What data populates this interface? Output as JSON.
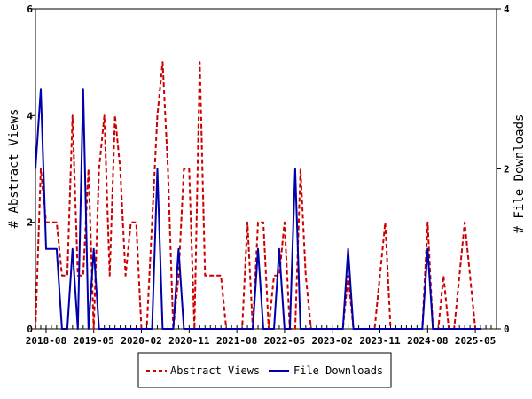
{
  "chart_data": {
    "type": "line",
    "ylabel_left": "# Abstract Views",
    "ylabel_right": "# File Downloads",
    "xlabel": "",
    "title": "",
    "ylim_left": [
      0,
      6
    ],
    "ylim_right": [
      0,
      4
    ],
    "yticks_left": [
      0,
      2,
      4,
      6
    ],
    "yticks_right": [
      0,
      2,
      4
    ],
    "x_start": "2018-06",
    "x_end": "2025-09",
    "x_tick_labels": [
      "2018-08",
      "2019-05",
      "2020-02",
      "2020-11",
      "2021-08",
      "2022-05",
      "2023-02",
      "2023-11",
      "2024-08",
      "2025-05"
    ],
    "legend_placement": "bottom",
    "grid": false,
    "series": [
      {
        "name": "Abstract Views",
        "axis": "left",
        "color": "#cc0000",
        "style": "dashed",
        "points": [
          [
            "2018-06",
            0
          ],
          [
            "2018-07",
            3
          ],
          [
            "2018-08",
            2
          ],
          [
            "2018-09",
            2
          ],
          [
            "2018-10",
            2
          ],
          [
            "2018-11",
            1
          ],
          [
            "2018-12",
            1
          ],
          [
            "2019-01",
            4
          ],
          [
            "2019-02",
            1
          ],
          [
            "2019-03",
            1
          ],
          [
            "2019-04",
            3
          ],
          [
            "2019-05",
            0
          ],
          [
            "2019-06",
            3
          ],
          [
            "2019-07",
            4
          ],
          [
            "2019-08",
            1
          ],
          [
            "2019-09",
            4
          ],
          [
            "2019-10",
            3
          ],
          [
            "2019-11",
            1
          ],
          [
            "2019-12",
            2
          ],
          [
            "2020-01",
            2
          ],
          [
            "2020-02",
            0
          ],
          [
            "2020-03",
            0
          ],
          [
            "2020-04",
            2
          ],
          [
            "2020-05",
            4
          ],
          [
            "2020-06",
            5
          ],
          [
            "2020-07",
            3
          ],
          [
            "2020-08",
            0
          ],
          [
            "2020-09",
            1
          ],
          [
            "2020-10",
            3
          ],
          [
            "2020-11",
            3
          ],
          [
            "2020-12",
            0
          ],
          [
            "2021-01",
            5
          ],
          [
            "2021-02",
            1
          ],
          [
            "2021-03",
            1
          ],
          [
            "2021-04",
            1
          ],
          [
            "2021-05",
            1
          ],
          [
            "2021-06",
            0
          ],
          [
            "2021-07",
            0
          ],
          [
            "2021-08",
            0
          ],
          [
            "2021-09",
            0
          ],
          [
            "2021-10",
            2
          ],
          [
            "2021-11",
            0
          ],
          [
            "2021-12",
            2
          ],
          [
            "2022-01",
            2
          ],
          [
            "2022-02",
            0
          ],
          [
            "2022-03",
            1
          ],
          [
            "2022-04",
            1
          ],
          [
            "2022-05",
            2
          ],
          [
            "2022-06",
            0
          ],
          [
            "2022-07",
            0
          ],
          [
            "2022-08",
            3
          ],
          [
            "2022-09",
            1
          ],
          [
            "2022-10",
            0
          ],
          [
            "2022-11",
            0
          ],
          [
            "2022-12",
            0
          ],
          [
            "2023-01",
            0
          ],
          [
            "2023-02",
            0
          ],
          [
            "2023-03",
            0
          ],
          [
            "2023-04",
            0
          ],
          [
            "2023-05",
            1
          ],
          [
            "2023-06",
            0
          ],
          [
            "2023-07",
            0
          ],
          [
            "2023-08",
            0
          ],
          [
            "2023-09",
            0
          ],
          [
            "2023-10",
            0
          ],
          [
            "2023-11",
            1
          ],
          [
            "2023-12",
            2
          ],
          [
            "2024-01",
            0
          ],
          [
            "2024-02",
            0
          ],
          [
            "2024-03",
            0
          ],
          [
            "2024-04",
            0
          ],
          [
            "2024-05",
            0
          ],
          [
            "2024-06",
            0
          ],
          [
            "2024-07",
            0
          ],
          [
            "2024-08",
            2
          ],
          [
            "2024-09",
            0
          ],
          [
            "2024-10",
            0
          ],
          [
            "2024-11",
            1
          ],
          [
            "2024-12",
            0
          ],
          [
            "2025-01",
            0
          ],
          [
            "2025-02",
            1
          ],
          [
            "2025-03",
            2
          ],
          [
            "2025-04",
            1
          ],
          [
            "2025-05",
            0
          ],
          [
            "2025-06",
            0
          ]
        ]
      },
      {
        "name": "File Downloads",
        "axis": "right",
        "color": "#0000aa",
        "style": "solid",
        "points": [
          [
            "2018-06",
            2
          ],
          [
            "2018-07",
            3
          ],
          [
            "2018-08",
            1
          ],
          [
            "2018-09",
            1
          ],
          [
            "2018-10",
            1
          ],
          [
            "2018-11",
            0
          ],
          [
            "2018-12",
            0
          ],
          [
            "2019-01",
            1
          ],
          [
            "2019-02",
            0
          ],
          [
            "2019-03",
            3
          ],
          [
            "2019-04",
            0
          ],
          [
            "2019-05",
            1
          ],
          [
            "2019-06",
            0
          ],
          [
            "2019-07",
            0
          ],
          [
            "2019-08",
            0
          ],
          [
            "2019-09",
            0
          ],
          [
            "2019-10",
            0
          ],
          [
            "2019-11",
            0
          ],
          [
            "2019-12",
            0
          ],
          [
            "2020-01",
            0
          ],
          [
            "2020-02",
            0
          ],
          [
            "2020-03",
            0
          ],
          [
            "2020-04",
            0
          ],
          [
            "2020-05",
            2
          ],
          [
            "2020-06",
            0
          ],
          [
            "2020-07",
            0
          ],
          [
            "2020-08",
            0
          ],
          [
            "2020-09",
            1
          ],
          [
            "2020-10",
            0
          ],
          [
            "2020-11",
            0
          ],
          [
            "2020-12",
            0
          ],
          [
            "2021-01",
            0
          ],
          [
            "2021-02",
            0
          ],
          [
            "2021-03",
            0
          ],
          [
            "2021-04",
            0
          ],
          [
            "2021-05",
            0
          ],
          [
            "2021-06",
            0
          ],
          [
            "2021-07",
            0
          ],
          [
            "2021-08",
            0
          ],
          [
            "2021-09",
            0
          ],
          [
            "2021-10",
            0
          ],
          [
            "2021-11",
            0
          ],
          [
            "2021-12",
            1
          ],
          [
            "2022-01",
            0
          ],
          [
            "2022-02",
            0
          ],
          [
            "2022-03",
            0
          ],
          [
            "2022-04",
            1
          ],
          [
            "2022-05",
            0
          ],
          [
            "2022-06",
            0
          ],
          [
            "2022-07",
            2
          ],
          [
            "2022-08",
            0
          ],
          [
            "2022-09",
            0
          ],
          [
            "2022-10",
            0
          ],
          [
            "2022-11",
            0
          ],
          [
            "2022-12",
            0
          ],
          [
            "2023-01",
            0
          ],
          [
            "2023-02",
            0
          ],
          [
            "2023-03",
            0
          ],
          [
            "2023-04",
            0
          ],
          [
            "2023-05",
            1
          ],
          [
            "2023-06",
            0
          ],
          [
            "2023-07",
            0
          ],
          [
            "2023-08",
            0
          ],
          [
            "2023-09",
            0
          ],
          [
            "2023-10",
            0
          ],
          [
            "2023-11",
            0
          ],
          [
            "2023-12",
            0
          ],
          [
            "2024-01",
            0
          ],
          [
            "2024-02",
            0
          ],
          [
            "2024-03",
            0
          ],
          [
            "2024-04",
            0
          ],
          [
            "2024-05",
            0
          ],
          [
            "2024-06",
            0
          ],
          [
            "2024-07",
            0
          ],
          [
            "2024-08",
            1
          ],
          [
            "2024-09",
            0
          ],
          [
            "2024-10",
            0
          ],
          [
            "2024-11",
            0
          ],
          [
            "2024-12",
            0
          ],
          [
            "2025-01",
            0
          ],
          [
            "2025-02",
            0
          ],
          [
            "2025-03",
            0
          ],
          [
            "2025-04",
            0
          ],
          [
            "2025-05",
            0
          ],
          [
            "2025-06",
            0
          ]
        ]
      }
    ]
  }
}
